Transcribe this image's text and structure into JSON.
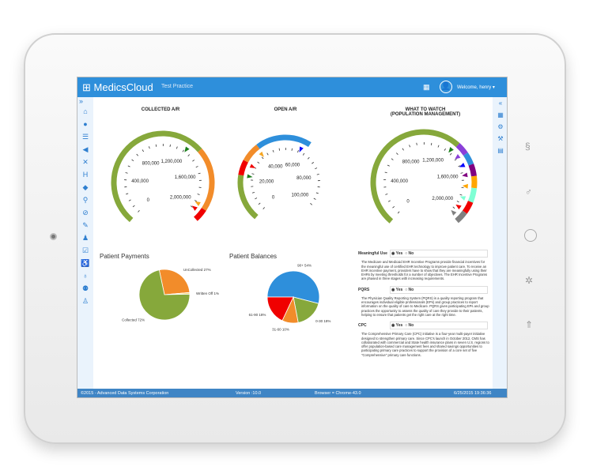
{
  "app": {
    "title": "MedicsCloud",
    "practice": "Test Practice",
    "welcome": "Welcome, henry",
    "user_menu_caret": "▾"
  },
  "sidebar": {
    "expand": "»",
    "icons": [
      "home-icon",
      "user-icon",
      "list-icon",
      "megaphone-icon",
      "stethoscope-icon",
      "hospital-icon",
      "pills-icon",
      "syringe-icon",
      "bandage-icon",
      "edit-icon",
      "user-tag-icon",
      "checklist-icon",
      "wheelchair-icon",
      "bottle-icon",
      "family-icon",
      "person-icon"
    ]
  },
  "right_sidebar": {
    "collapse": "«",
    "icons": [
      "grid-icon",
      "gears-icon",
      "wrench-icon",
      "book-icon"
    ]
  },
  "gauges": [
    {
      "title": "COLLECTED A/R",
      "labels": [
        "0",
        "400,000",
        "800,000",
        "1,200,000",
        "1,600,000",
        "2,000,000"
      ],
      "max": 2000000,
      "bands": [
        [
          0,
          1400000,
          "#86a83b"
        ],
        [
          1400000,
          1950000,
          "#f28c2a"
        ],
        [
          1950000,
          2060000,
          "#f00000"
        ]
      ],
      "markers": [
        [
          1300000,
          "#1a7f1a"
        ],
        [
          1930000,
          "#f5a623"
        ],
        [
          1990000,
          "#f00000"
        ]
      ]
    },
    {
      "title": "OPEN A/R",
      "labels": [
        "0",
        "20,000",
        "40,000",
        "60,000",
        "80,000",
        "100,000"
      ],
      "max": 100000,
      "bands": [
        [
          0,
          22000,
          "#86a83b"
        ],
        [
          22000,
          29000,
          "#f00000"
        ],
        [
          29000,
          38000,
          "#f28c2a"
        ],
        [
          38000,
          64000,
          "#2e8fdb"
        ]
      ],
      "markers": [
        [
          22000,
          "#1a7f1a"
        ],
        [
          28000,
          "#f00000"
        ],
        [
          37000,
          "#f5a623"
        ],
        [
          61000,
          "#0000ff"
        ]
      ]
    },
    {
      "title": "WHAT TO WATCH",
      "subtitle": "(POPULATION MANAGEMENT)",
      "labels": [
        "0",
        "400,000",
        "800,000",
        "1,200,000",
        "1,600,000",
        "2,000,000"
      ],
      "max": 2000000,
      "bands": [
        [
          0,
          1350000,
          "#86a83b"
        ],
        [
          1350000,
          1450000,
          "#8a3fd8"
        ],
        [
          1450000,
          1550000,
          "#2e8fdb"
        ],
        [
          1550000,
          1650000,
          "#800080"
        ],
        [
          1650000,
          1750000,
          "#ffa500"
        ],
        [
          1750000,
          1870000,
          "#7fffd4"
        ],
        [
          1870000,
          1970000,
          "#f00000"
        ],
        [
          1970000,
          2070000,
          "#808080"
        ]
      ],
      "markers": [
        [
          1330000,
          "#1a7f1a"
        ],
        [
          1430000,
          "#8a3fd8"
        ],
        [
          1530000,
          "#0000ff"
        ],
        [
          1630000,
          "#800080"
        ],
        [
          1740000,
          "#ffa500"
        ],
        [
          1860000,
          "#7fffd4"
        ],
        [
          1960000,
          "#f00000"
        ],
        [
          2040000,
          "#808080"
        ]
      ]
    }
  ],
  "chart_data": [
    {
      "type": "pie",
      "title": "Patient Payments",
      "slices": [
        {
          "label": "UnCollected 27%",
          "value": 27,
          "color": "#f28c2a"
        },
        {
          "label": "Written Off 1%",
          "value": 1,
          "color": "#f5d76e"
        },
        {
          "label": "Collected 72%",
          "value": 72,
          "color": "#86a83b"
        }
      ]
    },
    {
      "type": "pie",
      "title": "Patient Balances",
      "slices": [
        {
          "label": "90+ 54%",
          "value": 54,
          "color": "#2e8fdb"
        },
        {
          "label": "0-30 18%",
          "value": 18,
          "color": "#86a83b"
        },
        {
          "label": "31-60 10%",
          "value": 10,
          "color": "#f28c2a"
        },
        {
          "label": "61-90 18%",
          "value": 18,
          "color": "#f00000"
        }
      ]
    }
  ],
  "programs": [
    {
      "name": "Meaningful Use",
      "yes": "Yes",
      "no": "No",
      "selected": "Yes",
      "text": "The Medicare and Medicaid EHR Incentive Programs provide financial incentives for the meaningful use of certified EHR technology to improve patient care. To receive an EHR incentive payment, providers have to show that they are meaningfully using their EHRs by meeting thresholds for a number of objectives. The EHR Incentive Programs are phased in three stages with increasing requirements."
    },
    {
      "name": "PQRS",
      "yes": "Yes",
      "no": "No",
      "selected": "Yes",
      "text": "The Physician Quality Reporting System (PQRS) is a quality reporting program that encourages individual eligible professionals (EPs) and group practices to report information on the quality of care to Medicare. PQRS gives participating EPs and group practices the opportunity to assess the quality of care they provide to their patients, helping to ensure that patients get the right care at the right time."
    },
    {
      "name": "CPC",
      "yes": "Yes",
      "no": "No",
      "selected": "Yes",
      "text": "The Comprehensive Primary Care (CPC) initiative is a four-year multi-payer initiative designed to strengthen primary care. Since CPC's launch in October 2012, CMS has collaborated with commercial and State health insurance plans in seven U.S. regions to offer population-based care management fees and shared savings opportunities to participating primary care practices to support the provision of a core set of five \"Comprehensive\" primary care functions."
    }
  ],
  "footer": {
    "copyright": "©2015 - Advanced Data Systems Corporation",
    "version": "Version :10.0",
    "browser": "Browser = Chrome-43.0",
    "datetime": "6/25/2015 19:36:36"
  }
}
